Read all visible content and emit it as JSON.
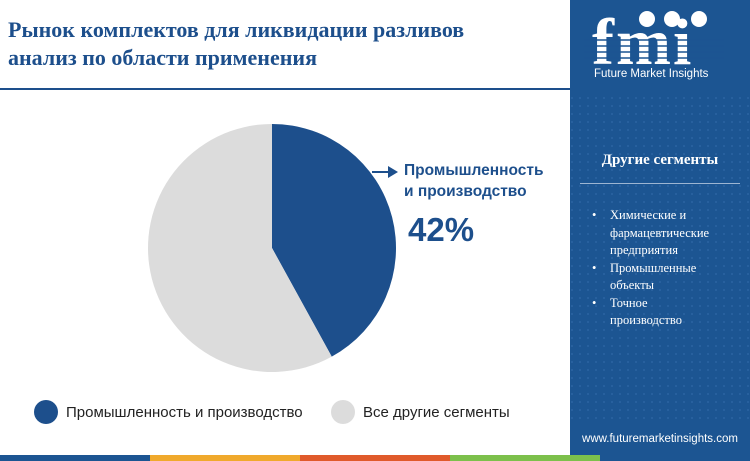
{
  "title": {
    "line1": "Рынок комплектов для ликвидации разливов",
    "line2": "анализ по области применения"
  },
  "chart_data": {
    "type": "pie",
    "title": "Рынок комплектов для ликвидации разливов анализ по области применения",
    "categories": [
      "Промышленность и производство",
      "Все другие сегменты"
    ],
    "values": [
      42,
      58
    ],
    "colors": [
      "#1d4f8c",
      "#dcdcdc"
    ],
    "start_angle_deg": 0,
    "callout": {
      "label_line1": "Промышленность",
      "label_line2": "и производство",
      "value_text": "42%"
    },
    "legend": [
      {
        "label": "Промышленность и производство",
        "color": "#1d4f8c"
      },
      {
        "label": "Все другие сегменты",
        "color": "#dcdcdc"
      }
    ],
    "legend_position": "bottom"
  },
  "sidebar": {
    "logo_text": "fmi",
    "logo_subtitle": "Future Market Insights",
    "heading": "Другие сегменты",
    "bullet": "•",
    "items": [
      {
        "line1": "Химические и",
        "line2": "фармацевтические",
        "line3": "предприятия"
      },
      {
        "line1": "Промышленные",
        "line2": "объекты"
      },
      {
        "line1": "Точное",
        "line2": "производство"
      }
    ],
    "website": "www.futuremarketinsights.com",
    "colors": {
      "background": "#1c5592",
      "text": "#ffffff"
    }
  },
  "footer_bar_colors": [
    "#1c5592",
    "#f0a92c",
    "#e05a2b",
    "#7cc04b",
    "#1c5592"
  ]
}
